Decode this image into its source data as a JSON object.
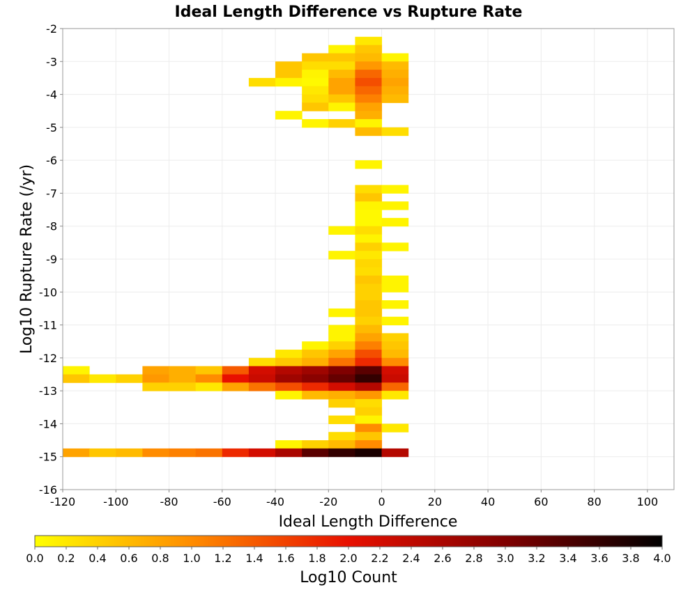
{
  "chart_data": {
    "type": "heatmap",
    "title": "Ideal Length Difference vs Rupture Rate",
    "xlabel": "Ideal Length Difference",
    "ylabel": "Log10 Rupture Rate (/yr)",
    "xlim": [
      -120,
      110
    ],
    "ylim": [
      -16,
      -2
    ],
    "xticks": [
      "-120",
      "-100",
      "-80",
      "-60",
      "-40",
      "-20",
      "0",
      "20",
      "40",
      "60",
      "80",
      "100"
    ],
    "yticks": [
      "-2",
      "-3",
      "-4",
      "-5",
      "-6",
      "-7",
      "-8",
      "-9",
      "-10",
      "-11",
      "-12",
      "-13",
      "-14",
      "-15",
      "-16"
    ],
    "grid": true,
    "bin_width": 10,
    "bin_height": 0.25,
    "colorbar": {
      "label": "Log10 Count",
      "range": [
        0.0,
        4.0
      ],
      "ticks": [
        "0.0",
        "0.2",
        "0.4",
        "0.6",
        "0.8",
        "1.0",
        "1.2",
        "1.4",
        "1.6",
        "1.8",
        "2.0",
        "2.2",
        "2.4",
        "2.6",
        "2.8",
        "3.0",
        "3.2",
        "3.4",
        "3.6",
        "3.8",
        "4.0"
      ],
      "colormap": [
        "#ffff00",
        "#ff8c00",
        "#e81000",
        "#800000",
        "#000000"
      ]
    },
    "cells": [
      {
        "x": -10,
        "y": -2.25,
        "v": 0.2
      },
      {
        "x": -20,
        "y": -2.5,
        "v": 0.1
      },
      {
        "x": -10,
        "y": -2.5,
        "v": 0.5
      },
      {
        "x": -30,
        "y": -2.75,
        "v": 0.5
      },
      {
        "x": -20,
        "y": -2.75,
        "v": 0.5
      },
      {
        "x": -10,
        "y": -2.75,
        "v": 0.6
      },
      {
        "x": 0,
        "y": -2.75,
        "v": 0.1
      },
      {
        "x": -40,
        "y": -3.0,
        "v": 0.5
      },
      {
        "x": -30,
        "y": -3.0,
        "v": 0.3
      },
      {
        "x": -20,
        "y": -3.0,
        "v": 0.3
      },
      {
        "x": -10,
        "y": -3.0,
        "v": 0.9
      },
      {
        "x": 0,
        "y": -3.0,
        "v": 0.6
      },
      {
        "x": -40,
        "y": -3.25,
        "v": 0.5
      },
      {
        "x": -30,
        "y": -3.25,
        "v": 0.1
      },
      {
        "x": -20,
        "y": -3.25,
        "v": 0.6
      },
      {
        "x": -10,
        "y": -3.25,
        "v": 1.3
      },
      {
        "x": 0,
        "y": -3.25,
        "v": 0.7
      },
      {
        "x": -50,
        "y": -3.5,
        "v": 0.3
      },
      {
        "x": -40,
        "y": -3.5,
        "v": 0.1
      },
      {
        "x": -30,
        "y": -3.5,
        "v": 0.05
      },
      {
        "x": -20,
        "y": -3.5,
        "v": 0.8
      },
      {
        "x": -10,
        "y": -3.5,
        "v": 1.5
      },
      {
        "x": 0,
        "y": -3.5,
        "v": 0.8
      },
      {
        "x": -30,
        "y": -3.75,
        "v": 0.2
      },
      {
        "x": -20,
        "y": -3.75,
        "v": 0.8
      },
      {
        "x": -10,
        "y": -3.75,
        "v": 1.3
      },
      {
        "x": 0,
        "y": -3.75,
        "v": 0.7
      },
      {
        "x": -30,
        "y": -4.0,
        "v": 0.3
      },
      {
        "x": -20,
        "y": -4.0,
        "v": 0.5
      },
      {
        "x": -10,
        "y": -4.0,
        "v": 1.1
      },
      {
        "x": 0,
        "y": -4.0,
        "v": 0.6
      },
      {
        "x": -30,
        "y": -4.25,
        "v": 0.5
      },
      {
        "x": -20,
        "y": -4.25,
        "v": 0.1
      },
      {
        "x": -10,
        "y": -4.25,
        "v": 0.8
      },
      {
        "x": -40,
        "y": -4.5,
        "v": 0.1
      },
      {
        "x": -10,
        "y": -4.5,
        "v": 0.7
      },
      {
        "x": -30,
        "y": -4.75,
        "v": 0.1
      },
      {
        "x": -20,
        "y": -4.75,
        "v": 0.4
      },
      {
        "x": -10,
        "y": -4.75,
        "v": 0.1
      },
      {
        "x": -10,
        "y": -5.0,
        "v": 0.6
      },
      {
        "x": 0,
        "y": -5.0,
        "v": 0.3
      },
      {
        "x": -10,
        "y": -6.0,
        "v": 0.1
      },
      {
        "x": -10,
        "y": -6.75,
        "v": 0.3
      },
      {
        "x": 0,
        "y": -6.75,
        "v": 0.1
      },
      {
        "x": -10,
        "y": -7.0,
        "v": 0.5
      },
      {
        "x": -10,
        "y": -7.25,
        "v": 0.1
      },
      {
        "x": 0,
        "y": -7.25,
        "v": 0.1
      },
      {
        "x": -10,
        "y": -7.5,
        "v": 0.05
      },
      {
        "x": -10,
        "y": -7.75,
        "v": 0.05
      },
      {
        "x": 0,
        "y": -7.75,
        "v": 0.1
      },
      {
        "x": -20,
        "y": -8.0,
        "v": 0.1
      },
      {
        "x": -10,
        "y": -8.0,
        "v": 0.3
      },
      {
        "x": -10,
        "y": -8.25,
        "v": 0.1
      },
      {
        "x": -10,
        "y": -8.5,
        "v": 0.4
      },
      {
        "x": 0,
        "y": -8.5,
        "v": 0.1
      },
      {
        "x": -20,
        "y": -8.75,
        "v": 0.1
      },
      {
        "x": -10,
        "y": -8.75,
        "v": 0.2
      },
      {
        "x": -10,
        "y": -9.0,
        "v": 0.35
      },
      {
        "x": -10,
        "y": -9.25,
        "v": 0.3
      },
      {
        "x": -10,
        "y": -9.5,
        "v": 0.5
      },
      {
        "x": 0,
        "y": -9.5,
        "v": 0.1
      },
      {
        "x": -10,
        "y": -9.75,
        "v": 0.4
      },
      {
        "x": 0,
        "y": -9.75,
        "v": 0.1
      },
      {
        "x": -10,
        "y": -10.0,
        "v": 0.4
      },
      {
        "x": -10,
        "y": -10.25,
        "v": 0.5
      },
      {
        "x": 0,
        "y": -10.25,
        "v": 0.1
      },
      {
        "x": -20,
        "y": -10.5,
        "v": 0.1
      },
      {
        "x": -10,
        "y": -10.5,
        "v": 0.5
      },
      {
        "x": -10,
        "y": -10.75,
        "v": 0.4
      },
      {
        "x": 0,
        "y": -10.75,
        "v": 0.1
      },
      {
        "x": -20,
        "y": -11.0,
        "v": 0.1
      },
      {
        "x": -10,
        "y": -11.0,
        "v": 0.6
      },
      {
        "x": -20,
        "y": -11.25,
        "v": 0.1
      },
      {
        "x": -10,
        "y": -11.25,
        "v": 0.8
      },
      {
        "x": 0,
        "y": -11.25,
        "v": 0.4
      },
      {
        "x": -30,
        "y": -11.5,
        "v": 0.1
      },
      {
        "x": -20,
        "y": -11.5,
        "v": 0.4
      },
      {
        "x": -10,
        "y": -11.5,
        "v": 1.1
      },
      {
        "x": 0,
        "y": -11.5,
        "v": 0.5
      },
      {
        "x": -40,
        "y": -11.75,
        "v": 0.2
      },
      {
        "x": -30,
        "y": -11.75,
        "v": 0.5
      },
      {
        "x": -20,
        "y": -11.75,
        "v": 0.8
      },
      {
        "x": -10,
        "y": -11.75,
        "v": 1.5
      },
      {
        "x": 0,
        "y": -11.75,
        "v": 0.6
      },
      {
        "x": -50,
        "y": -12.0,
        "v": 0.3
      },
      {
        "x": -40,
        "y": -12.0,
        "v": 0.5
      },
      {
        "x": -30,
        "y": -12.0,
        "v": 0.7
      },
      {
        "x": -20,
        "y": -12.0,
        "v": 1.2
      },
      {
        "x": -10,
        "y": -12.0,
        "v": 1.8
      },
      {
        "x": 0,
        "y": -12.0,
        "v": 1.0
      },
      {
        "x": -120,
        "y": -12.25,
        "v": 0.1
      },
      {
        "x": -90,
        "y": -12.25,
        "v": 0.8
      },
      {
        "x": -80,
        "y": -12.25,
        "v": 0.7
      },
      {
        "x": -70,
        "y": -12.25,
        "v": 0.5
      },
      {
        "x": -60,
        "y": -12.25,
        "v": 1.4
      },
      {
        "x": -50,
        "y": -12.25,
        "v": 2.2
      },
      {
        "x": -40,
        "y": -12.25,
        "v": 2.5
      },
      {
        "x": -30,
        "y": -12.25,
        "v": 2.7
      },
      {
        "x": -20,
        "y": -12.25,
        "v": 3.0
      },
      {
        "x": -10,
        "y": -12.25,
        "v": 3.3
      },
      {
        "x": 0,
        "y": -12.25,
        "v": 2.2
      },
      {
        "x": -120,
        "y": -12.5,
        "v": 0.5
      },
      {
        "x": -110,
        "y": -12.5,
        "v": 0.2
      },
      {
        "x": -100,
        "y": -12.5,
        "v": 0.4
      },
      {
        "x": -90,
        "y": -12.5,
        "v": 0.9
      },
      {
        "x": -80,
        "y": -12.5,
        "v": 0.7
      },
      {
        "x": -70,
        "y": -12.5,
        "v": 1.0
      },
      {
        "x": -60,
        "y": -12.5,
        "v": 2.0
      },
      {
        "x": -50,
        "y": -12.5,
        "v": 2.3
      },
      {
        "x": -40,
        "y": -12.5,
        "v": 2.7
      },
      {
        "x": -30,
        "y": -12.5,
        "v": 2.9
      },
      {
        "x": -20,
        "y": -12.5,
        "v": 3.2
      },
      {
        "x": -10,
        "y": -12.5,
        "v": 3.6
      },
      {
        "x": 0,
        "y": -12.5,
        "v": 2.3
      },
      {
        "x": -90,
        "y": -12.75,
        "v": 0.4
      },
      {
        "x": -80,
        "y": -12.75,
        "v": 0.4
      },
      {
        "x": -70,
        "y": -12.75,
        "v": 0.2
      },
      {
        "x": -60,
        "y": -12.75,
        "v": 0.8
      },
      {
        "x": -50,
        "y": -12.75,
        "v": 1.2
      },
      {
        "x": -40,
        "y": -12.75,
        "v": 1.5
      },
      {
        "x": -30,
        "y": -12.75,
        "v": 1.8
      },
      {
        "x": -20,
        "y": -12.75,
        "v": 2.2
      },
      {
        "x": -10,
        "y": -12.75,
        "v": 2.5
      },
      {
        "x": 0,
        "y": -12.75,
        "v": 1.3
      },
      {
        "x": -40,
        "y": -13.0,
        "v": 0.1
      },
      {
        "x": -30,
        "y": -13.0,
        "v": 0.6
      },
      {
        "x": -20,
        "y": -13.0,
        "v": 0.7
      },
      {
        "x": -10,
        "y": -13.0,
        "v": 0.9
      },
      {
        "x": 0,
        "y": -13.0,
        "v": 0.2
      },
      {
        "x": -20,
        "y": -13.25,
        "v": 0.4
      },
      {
        "x": -10,
        "y": -13.25,
        "v": 0.3
      },
      {
        "x": -10,
        "y": -13.5,
        "v": 0.4
      },
      {
        "x": -20,
        "y": -13.75,
        "v": 0.3
      },
      {
        "x": -10,
        "y": -13.75,
        "v": 0.1
      },
      {
        "x": -10,
        "y": -14.0,
        "v": 1.0
      },
      {
        "x": 0,
        "y": -14.0,
        "v": 0.2
      },
      {
        "x": -20,
        "y": -14.25,
        "v": 0.3
      },
      {
        "x": -10,
        "y": -14.25,
        "v": 0.5
      },
      {
        "x": -40,
        "y": -14.5,
        "v": 0.1
      },
      {
        "x": -30,
        "y": -14.5,
        "v": 0.4
      },
      {
        "x": -20,
        "y": -14.5,
        "v": 0.6
      },
      {
        "x": -10,
        "y": -14.5,
        "v": 1.0
      },
      {
        "x": -120,
        "y": -14.75,
        "v": 0.8
      },
      {
        "x": -110,
        "y": -14.75,
        "v": 0.5
      },
      {
        "x": -100,
        "y": -14.75,
        "v": 0.6
      },
      {
        "x": -90,
        "y": -14.75,
        "v": 1.0
      },
      {
        "x": -80,
        "y": -14.75,
        "v": 1.1
      },
      {
        "x": -70,
        "y": -14.75,
        "v": 1.2
      },
      {
        "x": -60,
        "y": -14.75,
        "v": 1.8
      },
      {
        "x": -50,
        "y": -14.75,
        "v": 2.2
      },
      {
        "x": -40,
        "y": -14.75,
        "v": 2.6
      },
      {
        "x": -30,
        "y": -14.75,
        "v": 3.3
      },
      {
        "x": -20,
        "y": -14.75,
        "v": 3.6
      },
      {
        "x": -10,
        "y": -14.75,
        "v": 3.8
      },
      {
        "x": 0,
        "y": -14.75,
        "v": 2.5
      }
    ]
  }
}
